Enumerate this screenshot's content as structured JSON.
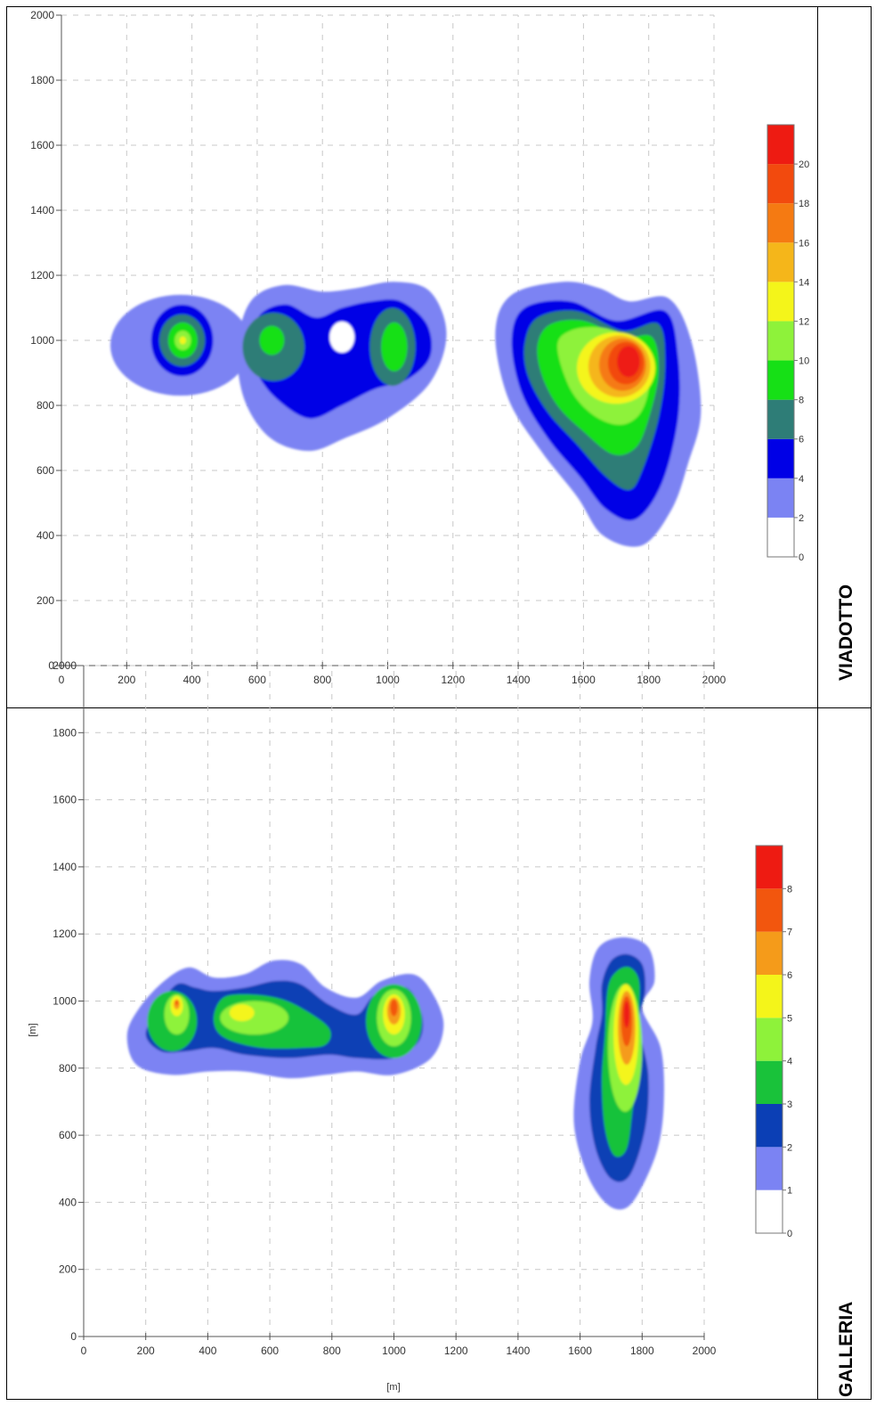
{
  "chart_data": [
    {
      "type": "contour",
      "panel_label": "VIADOTTO",
      "xlabel": "",
      "ylabel": "",
      "xlim": [
        0,
        2000
      ],
      "ylim": [
        0,
        2000
      ],
      "x_ticks": [
        0,
        200,
        400,
        600,
        800,
        1000,
        1200,
        1400,
        1600,
        1800,
        2000
      ],
      "y_ticks": [
        0,
        200,
        400,
        600,
        800,
        1000,
        1200,
        1400,
        1600,
        1800,
        2000
      ],
      "grid": true,
      "colorbar": {
        "placement": "right",
        "levels": [
          0,
          2,
          4,
          6,
          8,
          10,
          12,
          14,
          16,
          18,
          20
        ],
        "colors": [
          "#ffffff",
          "#7b83f3",
          "#0000e6",
          "#2e7d77",
          "#16e016",
          "#8ef23a",
          "#f4f51a",
          "#f5b61a",
          "#f57a12",
          "#f24a0e",
          "#ee1b12"
        ]
      },
      "hotspots": [
        {
          "x": 370,
          "y": 1000,
          "peak": 12
        },
        {
          "x": 650,
          "y": 1000,
          "peak": 9
        },
        {
          "x": 1020,
          "y": 980,
          "peak": 9
        },
        {
          "x": 1730,
          "y": 930,
          "peak": 20
        }
      ]
    },
    {
      "type": "contour",
      "panel_label": "GALLERIA",
      "xlabel": "[m]",
      "ylabel": "[m]",
      "xlim": [
        0,
        2000
      ],
      "ylim": [
        0,
        2000
      ],
      "x_ticks": [
        0,
        200,
        400,
        600,
        800,
        1000,
        1200,
        1400,
        1600,
        1800,
        2000
      ],
      "y_ticks": [
        0,
        200,
        400,
        600,
        800,
        1000,
        1200,
        1400,
        1600,
        1800,
        2000
      ],
      "grid": true,
      "colorbar": {
        "placement": "right",
        "levels": [
          0,
          1,
          2,
          3,
          4,
          5,
          6,
          7,
          8
        ],
        "colors": [
          "#ffffff",
          "#7b83f3",
          "#0b3fb5",
          "#19c23a",
          "#8ef23a",
          "#f4f51a",
          "#f59b1a",
          "#f2560e",
          "#ee1b12"
        ]
      },
      "hotspots": [
        {
          "x": 300,
          "y": 990,
          "peak": 7
        },
        {
          "x": 510,
          "y": 970,
          "peak": 5
        },
        {
          "x": 1000,
          "y": 980,
          "peak": 7
        },
        {
          "x": 1750,
          "y": 920,
          "peak": 8
        }
      ]
    }
  ]
}
